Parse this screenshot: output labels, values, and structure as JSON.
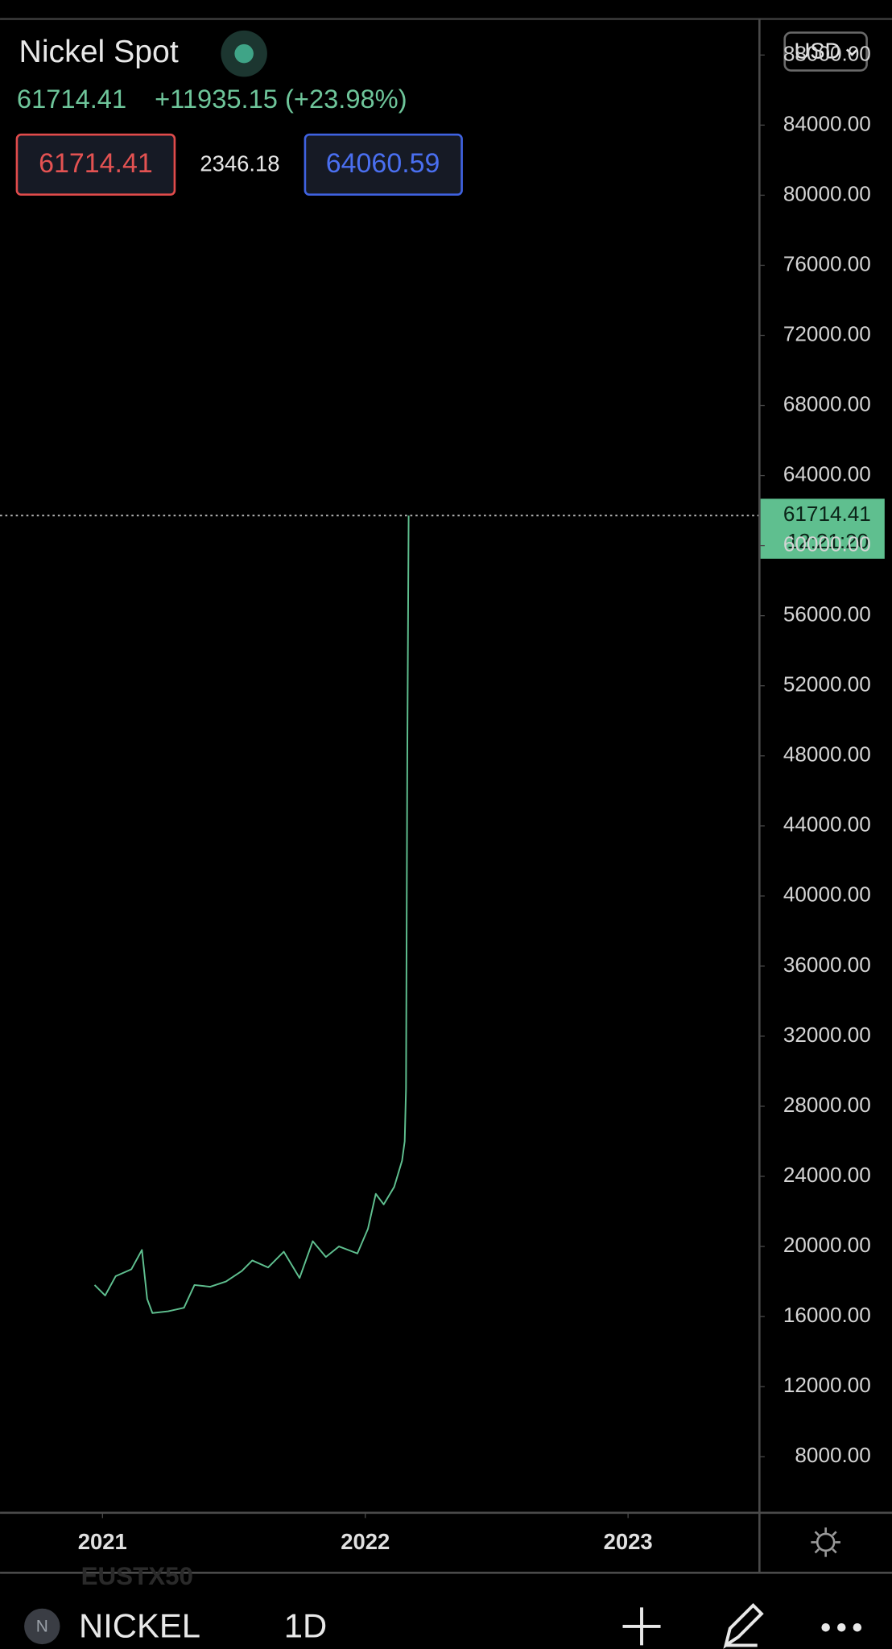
{
  "header": {
    "title": "Nickel Spot",
    "price": "61714.41",
    "change": "+11935.15 (+23.98%)",
    "bid": "61714.41",
    "spread": "2346.18",
    "ask": "64060.59",
    "currency": "USD"
  },
  "chart_data": {
    "type": "line",
    "x": [
      2020.97,
      2021.01,
      2021.05,
      2021.11,
      2021.15,
      2021.17,
      2021.19,
      2021.25,
      2021.31,
      2021.35,
      2021.41,
      2021.47,
      2021.53,
      2021.57,
      2021.63,
      2021.69,
      2021.75,
      2021.8,
      2021.85,
      2021.9,
      2021.97,
      2022.01,
      2022.04,
      2022.07,
      2022.11,
      2022.14,
      2022.15,
      2022.155,
      2022.16,
      2022.165
    ],
    "series": [
      {
        "color": "#5fbf8f",
        "values": [
          17800,
          17200,
          18300,
          18700,
          19800,
          17000,
          16200,
          16300,
          16500,
          17800,
          17700,
          18000,
          18600,
          19200,
          18800,
          19700,
          18200,
          20300,
          19400,
          20000,
          19600,
          21000,
          23000,
          22400,
          23400,
          24900,
          26000,
          29000,
          48300,
          61714.41
        ]
      }
    ],
    "xlim": [
      2020.61,
      2023.5
    ],
    "xticks": [
      2021,
      2022,
      2023
    ],
    "ylim": [
      4800,
      90060
    ],
    "yticks": [
      {
        "value": 8000,
        "label": "8000.00"
      },
      {
        "value": 12000,
        "label": "12000.00"
      },
      {
        "value": 16000,
        "label": "16000.00"
      },
      {
        "value": 20000,
        "label": "20000.00"
      },
      {
        "value": 24000,
        "label": "24000.00"
      },
      {
        "value": 28000,
        "label": "28000.00"
      },
      {
        "value": 32000,
        "label": "32000.00"
      },
      {
        "value": 36000,
        "label": "36000.00"
      },
      {
        "value": 40000,
        "label": "40000.00"
      },
      {
        "value": 44000,
        "label": "44000.00"
      },
      {
        "value": 48000,
        "label": "48000.00"
      },
      {
        "value": 52000,
        "label": "52000.00"
      },
      {
        "value": 56000,
        "label": "56000.00"
      },
      {
        "value": 60000,
        "label": "60000.00"
      },
      {
        "value": 64000,
        "label": "64000.00"
      },
      {
        "value": 68000,
        "label": "68000.00"
      },
      {
        "value": 72000,
        "label": "72000.00"
      },
      {
        "value": 76000,
        "label": "76000.00"
      },
      {
        "value": 80000,
        "label": "80000.00"
      },
      {
        "value": 84000,
        "label": "84000.00"
      },
      {
        "value": 88000,
        "label": "88000.00"
      }
    ],
    "last_price": {
      "value": 61714.41,
      "time": "12:21:20"
    }
  },
  "toolbar": {
    "watchlist_hint": "EUSTX50",
    "icon_letter": "N",
    "symbol": "NICKEL",
    "interval": "1D"
  }
}
